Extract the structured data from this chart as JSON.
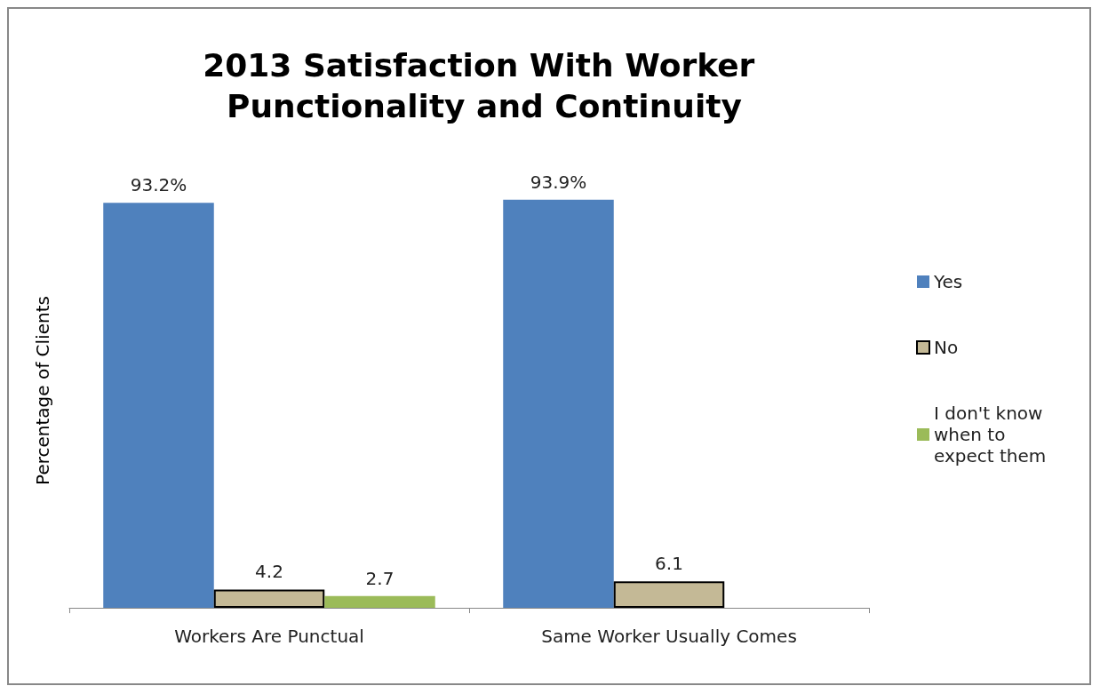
{
  "chart_data": {
    "type": "bar",
    "title": "2013 Satisfaction With Worker Punctionality and Continuity",
    "ylabel": "Percentage of Clients",
    "categories": [
      "Workers Are Punctual",
      "Same Worker Usually Comes"
    ],
    "series": [
      {
        "name": "Yes",
        "color": "#4f81bd",
        "values": [
          93.2,
          93.9
        ],
        "value_labels": [
          "93.2%",
          "93.9%"
        ]
      },
      {
        "name": "No",
        "color": "#c4b996",
        "values": [
          4.2,
          6.1
        ],
        "value_labels": [
          "4.2",
          "6.1"
        ]
      },
      {
        "name": "I don't know when to expect them",
        "color": "#9bbb59",
        "values": [
          2.7,
          null
        ],
        "value_labels": [
          "2.7",
          null
        ]
      }
    ],
    "legend": "right",
    "grid": false
  }
}
